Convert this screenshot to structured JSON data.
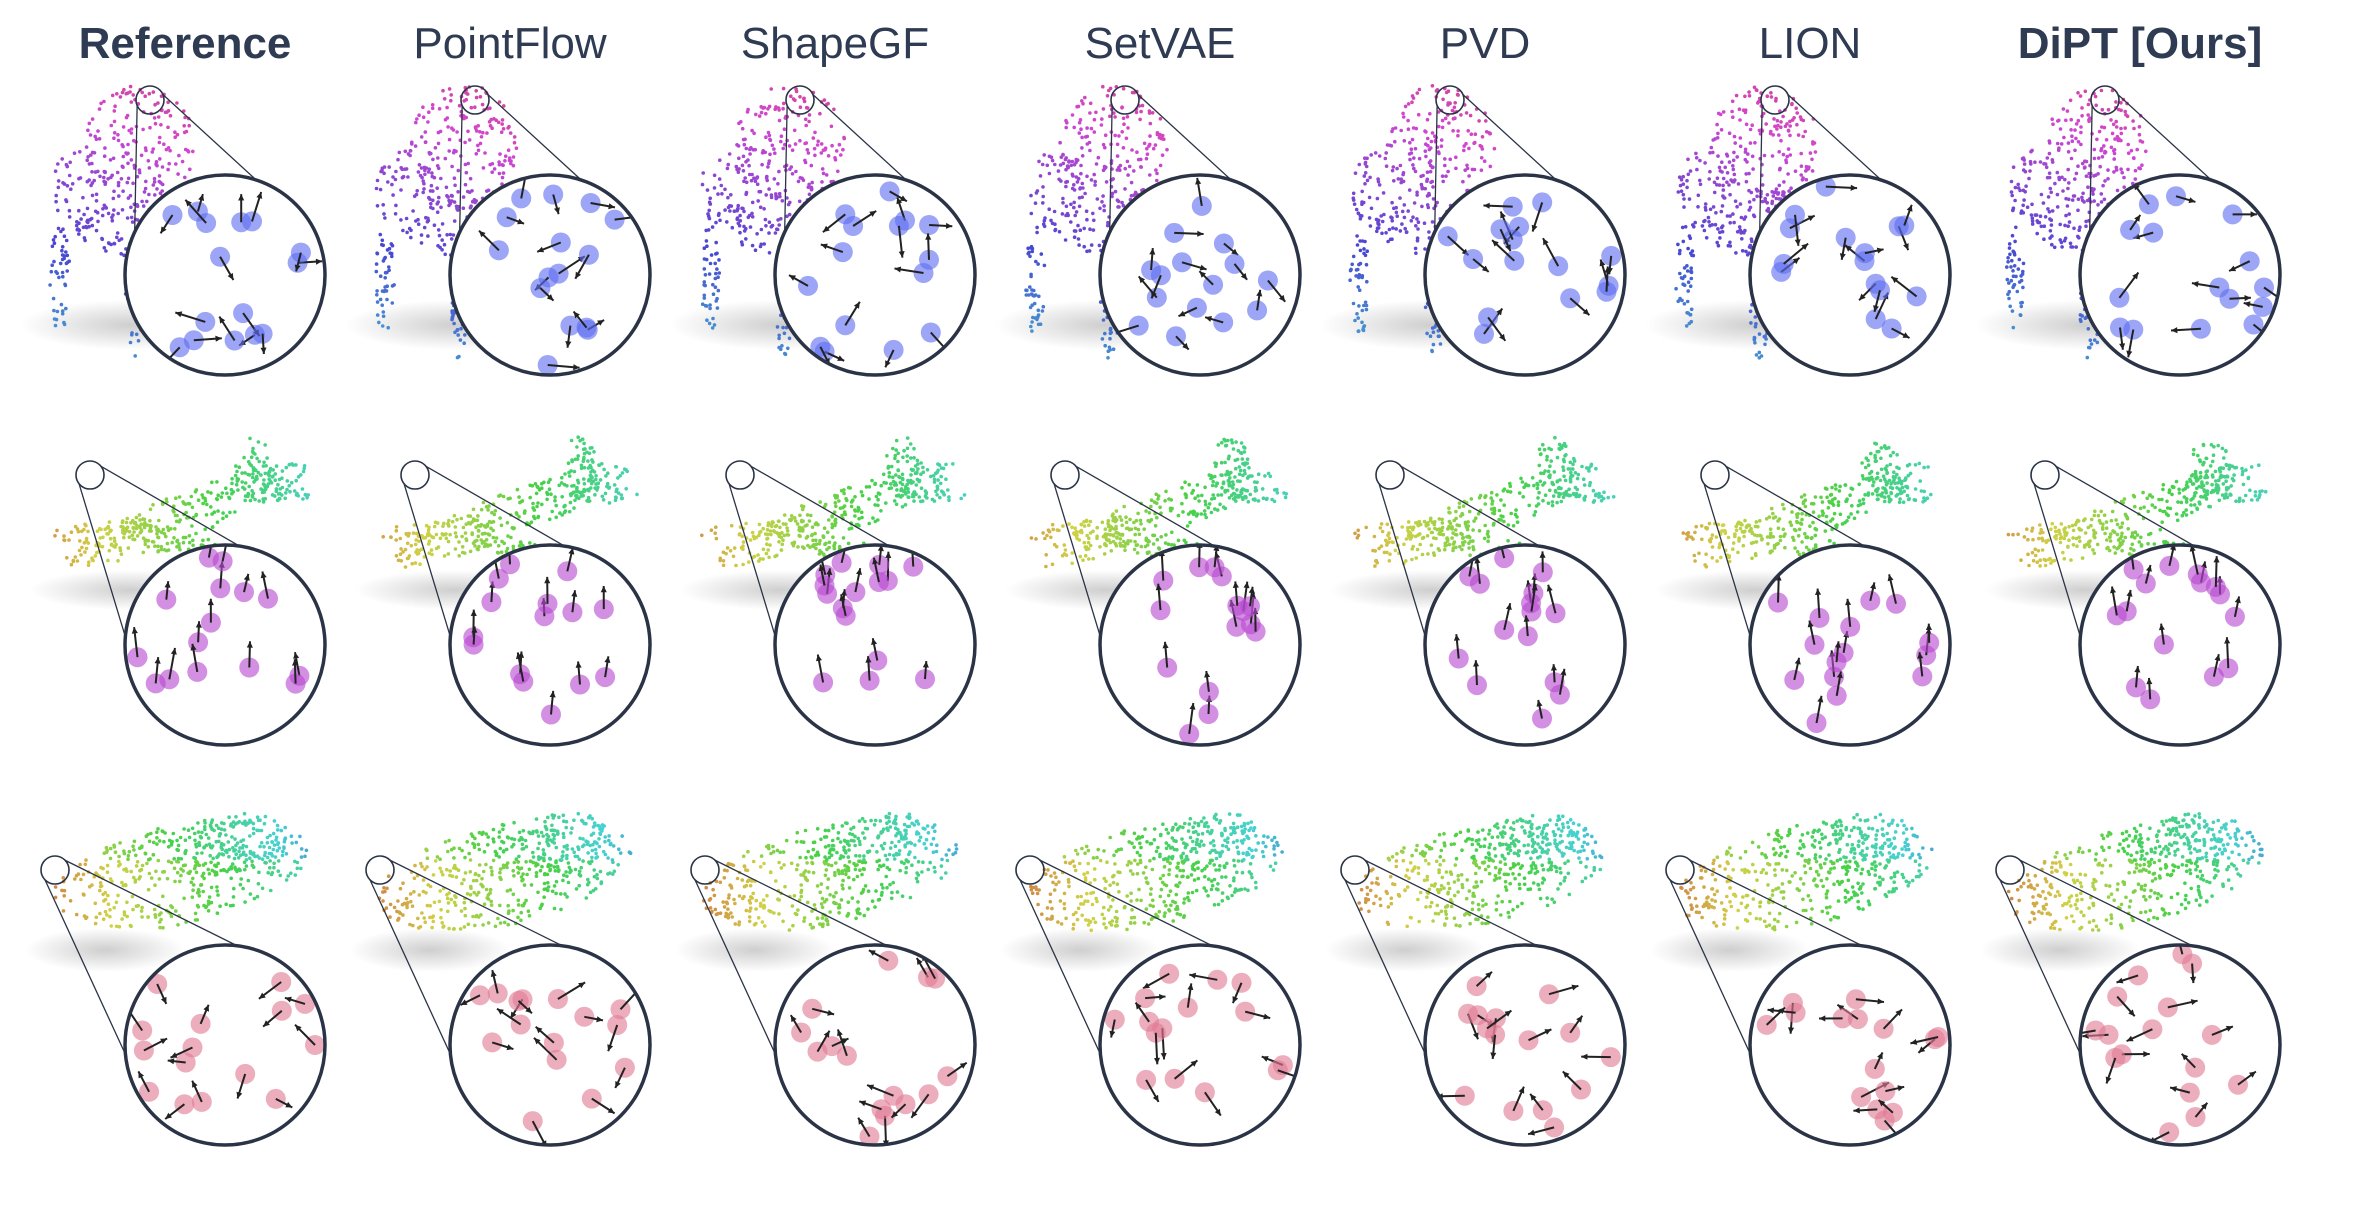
{
  "figure": {
    "columns": [
      {
        "label": "Reference",
        "bold": true
      },
      {
        "label": "PointFlow",
        "bold": false
      },
      {
        "label": "ShapeGF",
        "bold": false
      },
      {
        "label": "SetVAE",
        "bold": false
      },
      {
        "label": "PVD",
        "bold": false
      },
      {
        "label": "LION",
        "bold": false
      },
      {
        "label": "DiPT [Ours]",
        "bold": true
      }
    ],
    "rows": [
      {
        "object": "chair",
        "zoom_point_color": "#5f6ef0"
      },
      {
        "object": "airplane",
        "zoom_point_color": "#b84ad0"
      },
      {
        "object": "car",
        "zoom_point_color": "#e07a94"
      }
    ],
    "colors": {
      "header_text": "#2e3b52",
      "magnifier_border": "#2a3446",
      "arrow": "#222222",
      "shadow": "#c9c9c9"
    }
  }
}
